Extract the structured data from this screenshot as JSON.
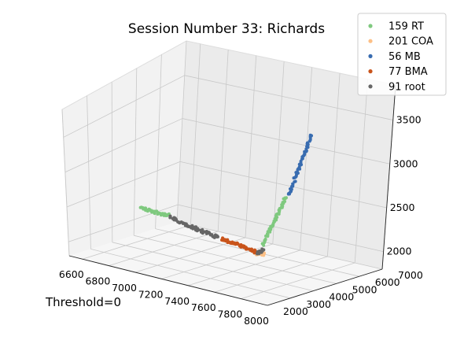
{
  "chart_data": {
    "type": "scatter",
    "projection": "3d",
    "title": "Session Number 33: Richards",
    "footnote": "Threshold=0",
    "xlabel": "",
    "ylabel": "",
    "zlabel": "",
    "xlim": [
      6500,
      8000
    ],
    "ylim": [
      2000,
      7000
    ],
    "zlim": [
      1800,
      3900
    ],
    "xticks": [
      6600,
      6800,
      7000,
      7200,
      7400,
      7600,
      7800,
      8000
    ],
    "yticks": [
      2000,
      3000,
      4000,
      5000,
      6000,
      7000
    ],
    "zticks": [
      2000,
      2500,
      3000,
      3500
    ],
    "grid": true,
    "legend_position": "top-right",
    "series": [
      {
        "name": "159 RT",
        "color": "#7fc97f",
        "segments": [
          {
            "from": [
              6520,
              5150,
              2140
            ],
            "to": [
              6740,
              5050,
              2140
            ],
            "count": 40
          },
          {
            "from": [
              7685,
              3550,
              2300
            ],
            "to": [
              7860,
              3350,
              3000
            ],
            "count": 55
          }
        ]
      },
      {
        "name": "201 COA",
        "color": "#fdc086",
        "segments": [
          {
            "from": [
              7640,
              3510,
              2180
            ],
            "to": [
              7720,
              3420,
              2210
            ],
            "count": 25
          }
        ]
      },
      {
        "name": "56 MB",
        "color": "#386cb0",
        "segments": [
          {
            "from": [
              7880,
              3360,
              3040
            ],
            "to": [
              7995,
              3440,
              3830
            ],
            "count": 56
          }
        ]
      },
      {
        "name": "77 BMA",
        "color": "#c9541b",
        "segments": [
          {
            "from": [
              7260,
              4280,
              2130
            ],
            "to": [
              7580,
              3940,
              2120
            ],
            "count": 50
          }
        ]
      },
      {
        "name": "91 root",
        "color": "#666666",
        "segments": [
          {
            "from": [
              6760,
              5000,
              2130
            ],
            "to": [
              7230,
              4330,
              2125
            ],
            "count": 60
          },
          {
            "from": [
              7600,
              3840,
              2130
            ],
            "to": [
              7690,
              3500,
              2240
            ],
            "count": 15
          }
        ]
      }
    ]
  }
}
